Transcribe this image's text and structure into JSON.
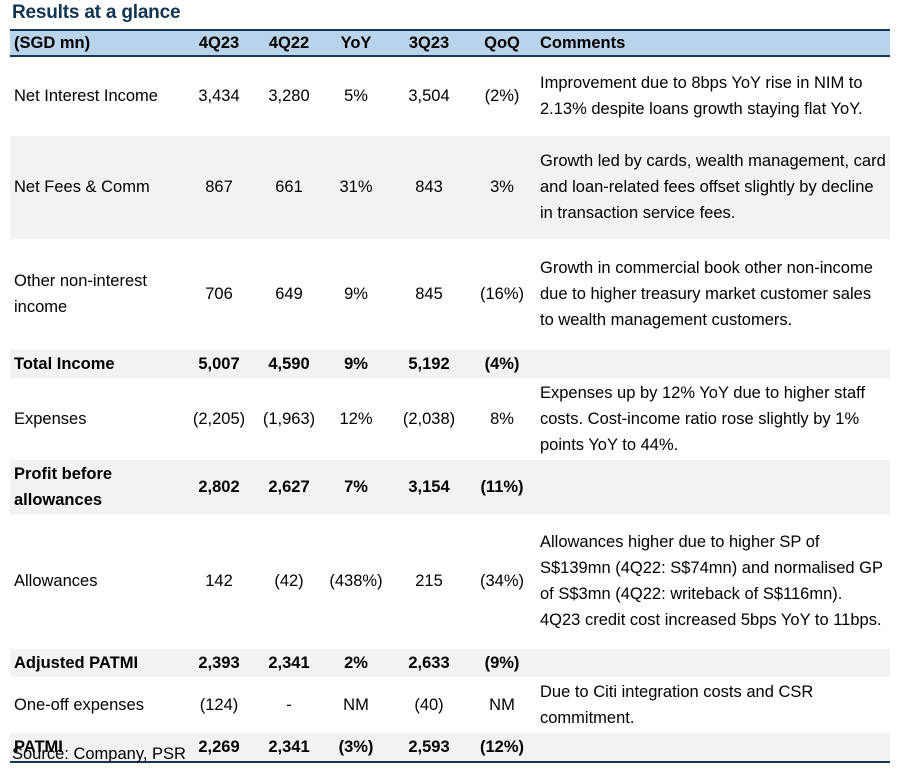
{
  "title": "Results at a glance",
  "headers": [
    "(SGD mn)",
    "4Q23",
    "4Q22",
    "YoY",
    "3Q23",
    "QoQ",
    "Comments"
  ],
  "rows": [
    {
      "label": "Net Interest Income",
      "q4_23": "3,434",
      "q4_22": "3,280",
      "yoy": "5%",
      "q3_23": "3,504",
      "qoq": "(2%)",
      "comment": "Improvement due to 8bps YoY rise in NIM to 2.13% despite loans growth staying flat YoY."
    },
    {
      "label": "Net Fees & Comm",
      "q4_23": "867",
      "q4_22": "661",
      "yoy": "31%",
      "q3_23": "843",
      "qoq": "3%",
      "comment": "Growth led by cards, wealth management, card and loan-related fees offset slightly by decline in transaction service fees."
    },
    {
      "label": "Other non-interest income",
      "q4_23": "706",
      "q4_22": "649",
      "yoy": "9%",
      "q3_23": "845",
      "qoq": "(16%)",
      "comment": "Growth in commercial book other non-income due to higher treasury market customer sales to wealth management customers."
    },
    {
      "label": "Total Income",
      "q4_23": "5,007",
      "q4_22": "4,590",
      "yoy": "9%",
      "q3_23": "5,192",
      "qoq": "(4%)",
      "comment": ""
    },
    {
      "label": "Expenses",
      "q4_23": "(2,205)",
      "q4_22": "(1,963)",
      "yoy": "12%",
      "q3_23": "(2,038)",
      "qoq": "8%",
      "comment": "Expenses up by 12% YoY due to higher staff costs. Cost-income ratio rose slightly by 1% points YoY to 44%."
    },
    {
      "label": "Profit before allowances",
      "q4_23": "2,802",
      "q4_22": "2,627",
      "yoy": "7%",
      "q3_23": "3,154",
      "qoq": "(11%)",
      "comment": ""
    },
    {
      "label": "Allowances",
      "q4_23": "142",
      "q4_22": "(42)",
      "yoy": "(438%)",
      "q3_23": "215",
      "qoq": "(34%)",
      "comment": "Allowances higher due to higher SP of S$139mn (4Q22: S$74mn) and normalised GP of S$3mn (4Q22: writeback of S$116mn). 4Q23 credit cost increased 5bps YoY to 11bps."
    },
    {
      "label": "Adjusted PATMI",
      "q4_23": "2,393",
      "q4_22": "2,341",
      "yoy": "2%",
      "q3_23": "2,633",
      "qoq": "(9%)",
      "comment": ""
    },
    {
      "label": "One-off expenses",
      "q4_23": "(124)",
      "q4_22": "-",
      "yoy": "NM",
      "q3_23": "(40)",
      "qoq": "NM",
      "comment": "Due to Citi integration costs and CSR commitment."
    },
    {
      "label": "PATMI",
      "q4_23": "2,269",
      "q4_22": "2,341",
      "yoy": "(3%)",
      "q3_23": "2,593",
      "qoq": "(12%)",
      "comment": ""
    }
  ],
  "source": "Source: Company, PSR",
  "colors": {
    "title": "#0f3553",
    "header_bg": "#b9d3ea",
    "shade": "#f2f2f2",
    "rule": "#16365c"
  }
}
